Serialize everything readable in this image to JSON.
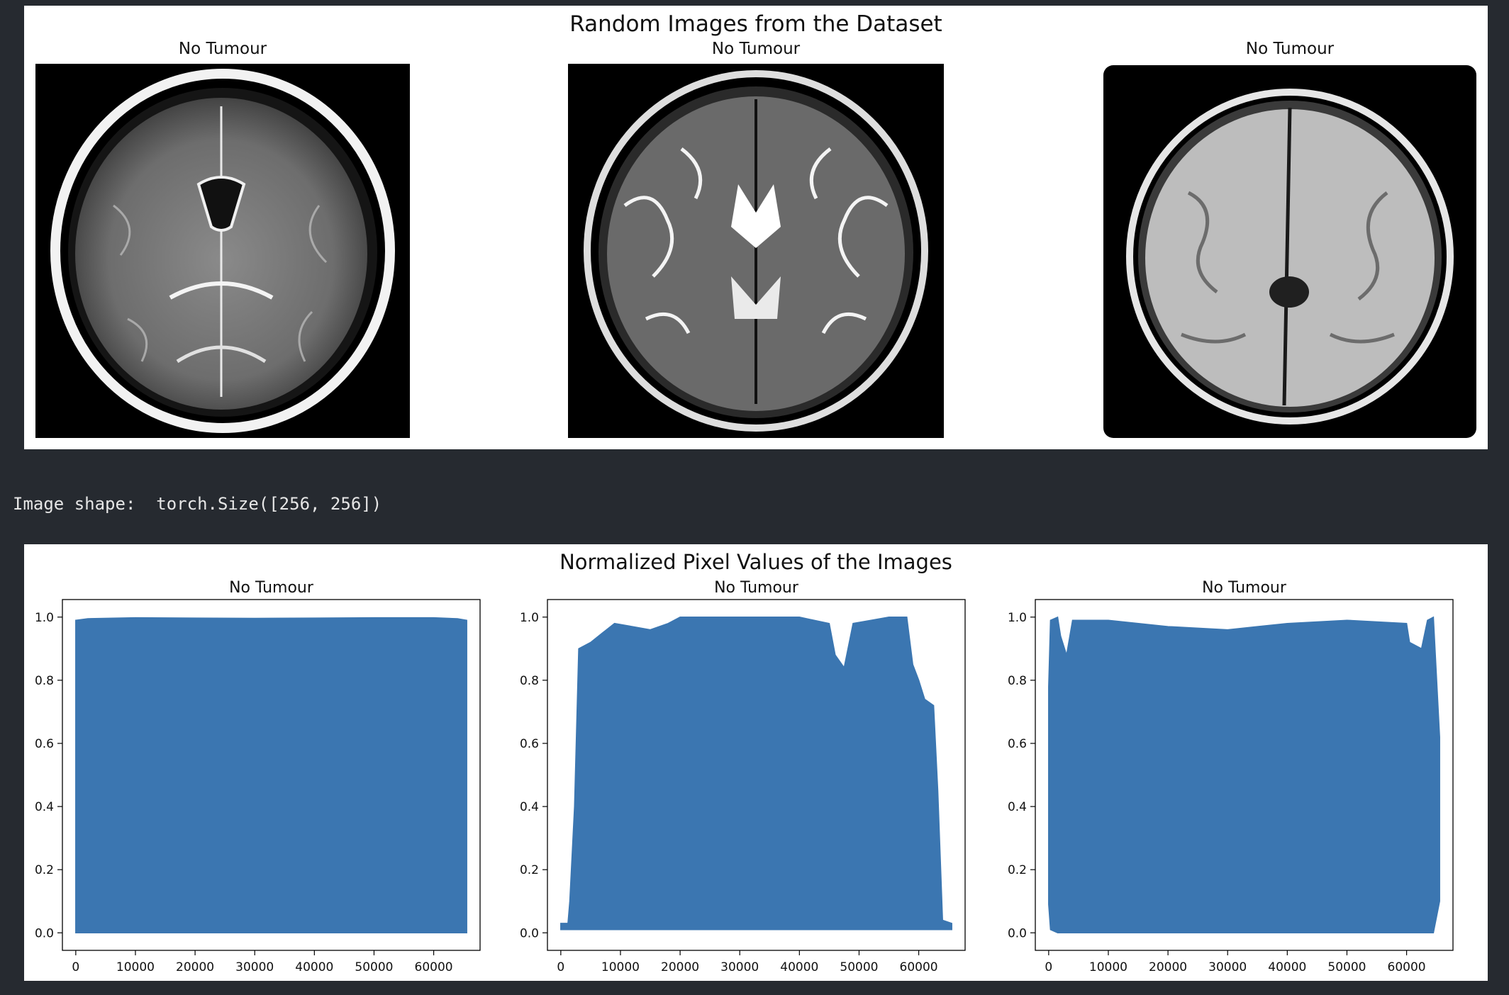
{
  "figure1": {
    "title": "Random Images from the Dataset",
    "images": [
      {
        "label": "No Tumour",
        "style": "t1-contrast"
      },
      {
        "label": "No Tumour",
        "style": "t2"
      },
      {
        "label": "No Tumour",
        "style": "t1"
      }
    ]
  },
  "output": {
    "text": "Image shape:  torch.Size([256, 256])"
  },
  "figure2": {
    "title": "Normalized Pixel Values of the Images"
  },
  "colors": {
    "background": "#262a30",
    "series": "#3b76b1",
    "figure": "#ffffff"
  },
  "chart_data": [
    {
      "type": "area",
      "title": "No Tumour",
      "xlim": [
        0,
        65536
      ],
      "ylim": [
        0,
        1.0
      ],
      "xticks": [
        "0",
        "10000",
        "20000",
        "30000",
        "40000",
        "50000",
        "60000"
      ],
      "yticks": [
        "0.0",
        "0.2",
        "0.4",
        "0.6",
        "0.8",
        "1.0"
      ],
      "series": [
        {
          "x": [
            0,
            2000,
            10000,
            20000,
            30000,
            40000,
            50000,
            60000,
            64000,
            65536
          ],
          "upper": [
            0.99,
            0.995,
            0.998,
            0.997,
            0.996,
            0.997,
            0.998,
            0.998,
            0.995,
            0.99
          ],
          "lower": [
            0.0,
            0.0,
            0.0,
            0.0,
            0.0,
            0.0,
            0.0,
            0.0,
            0.0,
            0.0
          ]
        }
      ]
    },
    {
      "type": "area",
      "title": "No Tumour",
      "xlim": [
        0,
        65536
      ],
      "ylim": [
        0,
        1.0
      ],
      "xticks": [
        "0",
        "10000",
        "20000",
        "30000",
        "40000",
        "50000",
        "60000"
      ],
      "yticks": [
        "0.0",
        "0.2",
        "0.4",
        "0.6",
        "0.8",
        "1.0"
      ],
      "series": [
        {
          "x": [
            0,
            1200,
            1500,
            2300,
            3000,
            5000,
            7000,
            9000,
            12000,
            15000,
            18000,
            20000,
            30000,
            40000,
            45000,
            46000,
            47500,
            49000,
            52000,
            55000,
            58000,
            59000,
            60000,
            61000,
            62500,
            63200,
            64000,
            65536
          ],
          "upper": [
            0.03,
            0.03,
            0.1,
            0.4,
            0.9,
            0.92,
            0.95,
            0.98,
            0.97,
            0.96,
            0.98,
            1.0,
            1.0,
            1.0,
            0.98,
            0.88,
            0.84,
            0.98,
            0.99,
            1.0,
            1.0,
            0.85,
            0.8,
            0.74,
            0.72,
            0.45,
            0.04,
            0.03
          ],
          "lower": [
            0.01,
            0.01,
            0.01,
            0.01,
            0.01,
            0.01,
            0.01,
            0.01,
            0.01,
            0.01,
            0.01,
            0.01,
            0.01,
            0.01,
            0.01,
            0.01,
            0.01,
            0.01,
            0.01,
            0.01,
            0.01,
            0.01,
            0.01,
            0.01,
            0.01,
            0.01,
            0.01,
            0.01
          ]
        }
      ]
    },
    {
      "type": "area",
      "title": "No Tumour",
      "xlim": [
        0,
        65536
      ],
      "ylim": [
        0,
        1.0
      ],
      "xticks": [
        "0",
        "10000",
        "20000",
        "30000",
        "40000",
        "50000",
        "60000"
      ],
      "yticks": [
        "0.0",
        "0.2",
        "0.4",
        "0.6",
        "0.8",
        "1.0"
      ],
      "series": [
        {
          "x": [
            0,
            300,
            1500,
            2000,
            3000,
            4000,
            10000,
            20000,
            30000,
            40000,
            50000,
            60000,
            60500,
            62500,
            63500,
            64500,
            65536
          ],
          "upper": [
            0.78,
            0.99,
            1.0,
            0.94,
            0.88,
            0.99,
            0.99,
            0.97,
            0.96,
            0.98,
            0.99,
            0.98,
            0.92,
            0.9,
            0.99,
            1.0,
            0.62
          ],
          "lower": [
            0.09,
            0.01,
            0.0,
            0.0,
            0.0,
            0.0,
            0.0,
            0.0,
            0.0,
            0.0,
            0.0,
            0.0,
            0.0,
            0.0,
            0.0,
            0.0,
            0.1
          ]
        }
      ]
    }
  ]
}
